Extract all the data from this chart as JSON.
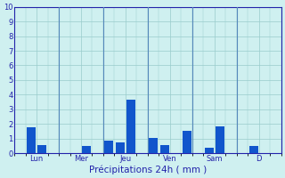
{
  "title": "",
  "xlabel": "Précipitations 24h ( mm )",
  "ylim": [
    0,
    10
  ],
  "yticks": [
    0,
    1,
    2,
    3,
    4,
    5,
    6,
    7,
    8,
    9,
    10
  ],
  "background_color": "#cff0f0",
  "bar_color": "#1155cc",
  "grid_color": "#99cccc",
  "separator_color": "#5588bb",
  "axis_color": "#2222aa",
  "tick_label_color": "#2222aa",
  "xlabel_color": "#2222aa",
  "day_labels": [
    "Lun",
    "Mer",
    "Jeu",
    "Ven",
    "Sam",
    "D"
  ],
  "bar_x": [
    2,
    3,
    7,
    9,
    10,
    11,
    13,
    14,
    16,
    18,
    19,
    22
  ],
  "bar_heights": [
    1.75,
    0.55,
    0.5,
    0.85,
    0.75,
    3.65,
    1.05,
    0.55,
    1.5,
    0.35,
    1.85,
    0.5
  ],
  "num_slots": 24,
  "day_boundaries": [
    4,
    8,
    12,
    16,
    20
  ],
  "figsize": [
    3.2,
    2.0
  ],
  "dpi": 100
}
